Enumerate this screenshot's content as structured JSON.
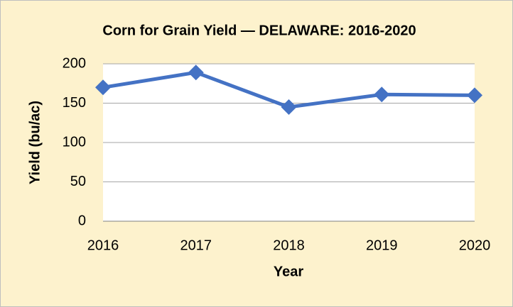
{
  "chart_data": {
    "type": "line",
    "title": "Corn for Grain Yield — DELAWARE: 2016-2020",
    "x_label": "Year",
    "y_label": "Yield (bu/ac)",
    "categories": [
      "2016",
      "2017",
      "2018",
      "2019",
      "2020"
    ],
    "values": [
      170,
      189,
      145,
      161,
      160
    ],
    "color": "#4472c4",
    "ylim": [
      0,
      200
    ],
    "yticks": [
      0,
      50,
      100,
      150,
      200
    ],
    "grid": true
  }
}
